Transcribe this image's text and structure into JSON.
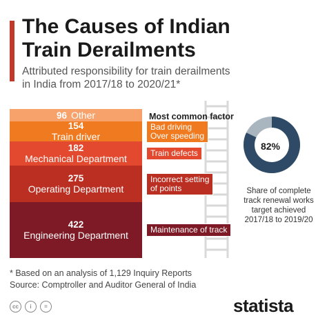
{
  "header": {
    "title_lines": [
      "The Causes of Indian",
      "Train Derailments"
    ],
    "subtitle_lines": [
      "Attributed responsibility for train derailments",
      "in India from 2017/18 to 2020/21*"
    ]
  },
  "chart_data": {
    "type": "bar",
    "categories": [
      "Other",
      "Train driver",
      "Mechanical Department",
      "Operating Department",
      "Engineering Department"
    ],
    "values": [
      96,
      154,
      182,
      275,
      422
    ],
    "colors": [
      "#f6a26a",
      "#f07a1f",
      "#e2492e",
      "#bb2f22",
      "#7e1a26"
    ],
    "most_common_factor_header": "Most common factor",
    "factors": [
      null,
      [
        "Bad driving",
        "Over speeding"
      ],
      [
        "Train defects"
      ],
      [
        "Incorrect setting",
        "of points"
      ],
      [
        "Maintenance of track"
      ]
    ]
  },
  "donut": {
    "value_label": "82%",
    "value": 82,
    "color_fill": "#2e4a66",
    "color_rest": "#a9b5bf",
    "caption_lines": [
      "Share of complete",
      "track renewal works",
      "target achieved",
      "2017/18 to 2019/20"
    ]
  },
  "footer": {
    "footnote": "* Based on an analysis of 1,129 Inquiry Reports",
    "source": "Source: Comptroller and Auditor General of India",
    "brand": "statista",
    "cc_icons": [
      "cc",
      "i",
      "="
    ]
  }
}
